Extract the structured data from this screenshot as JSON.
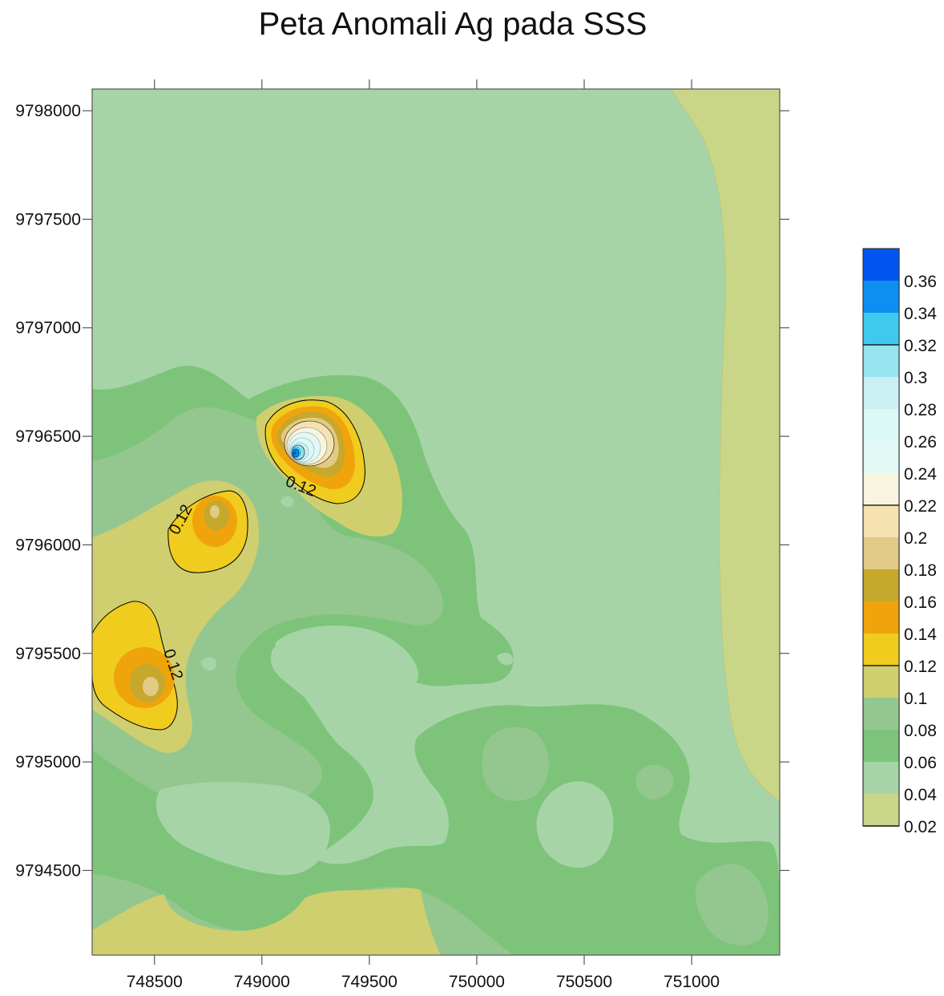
{
  "chart_data": {
    "type": "heatmap",
    "subtype": "filled-contour",
    "title": "Peta Anomali Ag pada SSS",
    "xlabel": "",
    "ylabel": "",
    "xlim": [
      748210,
      751410
    ],
    "ylim": [
      9794110,
      9798100
    ],
    "x_ticks": [
      748500,
      749000,
      749500,
      750000,
      750500,
      751000
    ],
    "x_tick_labels": [
      "748500",
      "749000",
      "749500",
      "750000",
      "750500",
      "751000"
    ],
    "y_ticks": [
      9794500,
      9795000,
      9795500,
      9796000,
      9796500,
      9797000,
      9797500,
      9798000
    ],
    "y_tick_labels": [
      "9794500",
      "9795000",
      "9795500",
      "9796000",
      "9796500",
      "9797000",
      "9797500",
      "9798000"
    ],
    "colorbar": {
      "levels": [
        0.02,
        0.04,
        0.06,
        0.08,
        0.1,
        0.12,
        0.14,
        0.16,
        0.18,
        0.2,
        0.22,
        0.24,
        0.26,
        0.28,
        0.3,
        0.32,
        0.34,
        0.36
      ],
      "labels": [
        "0.02",
        "0.04",
        "0.06",
        "0.08",
        "0.1",
        "0.12",
        "0.14",
        "0.16",
        "0.18",
        "0.2",
        "0.22",
        "0.24",
        "0.26",
        "0.28",
        "0.3",
        "0.32",
        "0.34",
        "0.36"
      ],
      "colors": [
        "#c9d687",
        "#a6d4a7",
        "#7dc47a",
        "#94c78f",
        "#cfcf6f",
        "#efcc1e",
        "#f0a40c",
        "#c6a82c",
        "#e0ca85",
        "#f6e1b1",
        "#f7f5e0",
        "#e2f8f4",
        "#daf9f7",
        "#caf0f3",
        "#96e4f0",
        "#3fc9ef",
        "#0c8ff1",
        "#0055f0"
      ]
    },
    "contour_labels": [
      "0.12",
      "0.12",
      "0.12"
    ],
    "anomalies": [
      {
        "x": 749160,
        "y": 9796420,
        "peak": 0.37
      },
      {
        "x": 748790,
        "y": 9796110,
        "peak": 0.19
      },
      {
        "x": 748480,
        "y": 9795320,
        "peak": 0.2
      }
    ]
  }
}
